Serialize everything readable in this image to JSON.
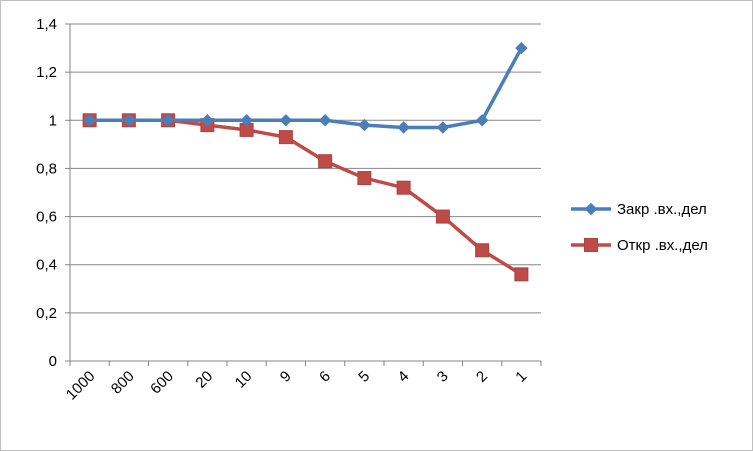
{
  "chart_data": {
    "type": "line",
    "title": "",
    "xlabel": "",
    "ylabel": "",
    "categories": [
      "1000",
      "800",
      "600",
      "20",
      "10",
      "9",
      "6",
      "5",
      "4",
      "3",
      "2",
      "1"
    ],
    "ylim": [
      0,
      1.4
    ],
    "yticks": [
      "0",
      "0,2",
      "0,4",
      "0,6",
      "0,8",
      "1",
      "1,2",
      "1,4"
    ],
    "grid": true,
    "legend_position": "right",
    "series": [
      {
        "name": "Закр .вх.,дел",
        "color": "#4a7ebb",
        "marker": "diamond",
        "values": [
          1,
          1,
          1,
          1,
          1,
          1,
          1,
          0.98,
          0.97,
          0.97,
          1,
          1.3
        ]
      },
      {
        "name": "Откр .вх.,дел",
        "color": "#be4b48",
        "marker": "square",
        "values": [
          1,
          1,
          1,
          0.98,
          0.96,
          0.93,
          0.83,
          0.76,
          0.72,
          0.6,
          0.46,
          0.36
        ]
      }
    ]
  }
}
